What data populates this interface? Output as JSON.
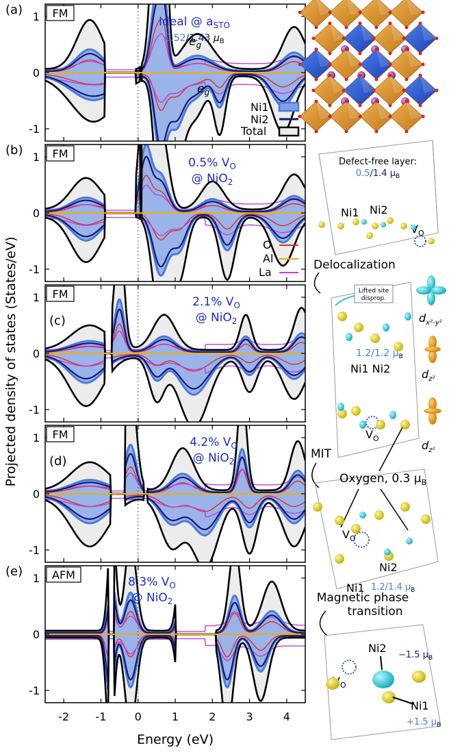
{
  "figure": {
    "y_axis_label": "Projected density of states (States/eV)",
    "x_axis_label": "Energy (eV)",
    "x_ticks": [
      "-2",
      "-1",
      "0",
      "1",
      "2",
      "3",
      "4"
    ],
    "y_ticks": [
      "1",
      "0",
      "-1"
    ],
    "colors": {
      "ni1_fill": "#7fa0e8",
      "ni1_line": "#4a7bd9",
      "ni2_line": "#101a7a",
      "total": "#000000",
      "o": "#e03020",
      "al": "#f0b000",
      "la": "#c040d8",
      "annot_blue": "#1a2bd0",
      "shade": "#ececec"
    },
    "legend": {
      "ni1": "Ni1",
      "ni2": "Ni2",
      "total": "Total",
      "o": "O",
      "al": "Al",
      "la": "La"
    },
    "panels": [
      {
        "id": "a",
        "label": "(a)",
        "mag": "FM",
        "note1": "Ideal @ a",
        "note1_sub": "STO",
        "moment_a": "0.52",
        "moment_b": "/1.43",
        "moment_unit": " μ",
        "moment_unit_sub": "B",
        "eg": "e",
        "eg_sub": "g"
      },
      {
        "id": "b",
        "label": "(b)",
        "mag": "FM",
        "note1": "0.5% V",
        "note1_sub": "O",
        "note2": "@ NiO",
        "note2_sub": "2"
      },
      {
        "id": "c",
        "label": "(c)",
        "mag": "FM",
        "note1": "2.1% V",
        "note1_sub": "O",
        "note2": "@ NiO",
        "note2_sub": "2"
      },
      {
        "id": "d",
        "label": "(d)",
        "mag": "FM",
        "note1": "4.2% V",
        "note1_sub": "O",
        "note2": "@ NiO",
        "note2_sub": "2"
      },
      {
        "id": "e",
        "label": "(e)",
        "mag": "AFM",
        "note1": "8.3% V",
        "note1_sub": "O",
        "note2": "@ NiO",
        "note2_sub": "2"
      }
    ],
    "right": {
      "defect_free": "Defect-free layer:",
      "defect_free_m1": "0.5",
      "defect_free_m2": "/1.4 μ",
      "defect_free_sub": "B",
      "b_ni1": "Ni1",
      "b_ni2": "Ni2",
      "b_vo": "V",
      "b_vo_sub": "O",
      "delocalization": "Delocalization",
      "lifted1": "Lifted site",
      "lifted2": "disprop.",
      "c_moment": "1.2/1.2 μ",
      "c_moment_sub": "B",
      "c_ni": "Ni1 Ni2",
      "c_vo": "V",
      "c_vo_sub": "O",
      "orb1": "d",
      "orb1_sub": "x²-y²",
      "orb2": "d",
      "orb2_sub": "z²",
      "orb3": "d",
      "orb3_sub": "z²",
      "mit": "MIT",
      "oxygen": "Oxygen, 0.3 μ",
      "oxygen_sub": "B",
      "d_vo": "V",
      "d_vo_sub": "O",
      "d_ni2": "Ni2",
      "d_ni1": "Ni1",
      "d_moment": "1.2/1.4 μ",
      "d_moment_sub": "B",
      "mag_phase1": "Magnetic phase",
      "mag_phase2": "transition",
      "e_ni2": "Ni2",
      "e_ni1": "Ni1",
      "e_m_neg": "−1.5 μ",
      "e_m_neg_sub": "B",
      "e_m_pos": "+1.5 μ",
      "e_m_pos_sub": "B",
      "e_vo": "V",
      "e_vo_sub": "O"
    }
  }
}
